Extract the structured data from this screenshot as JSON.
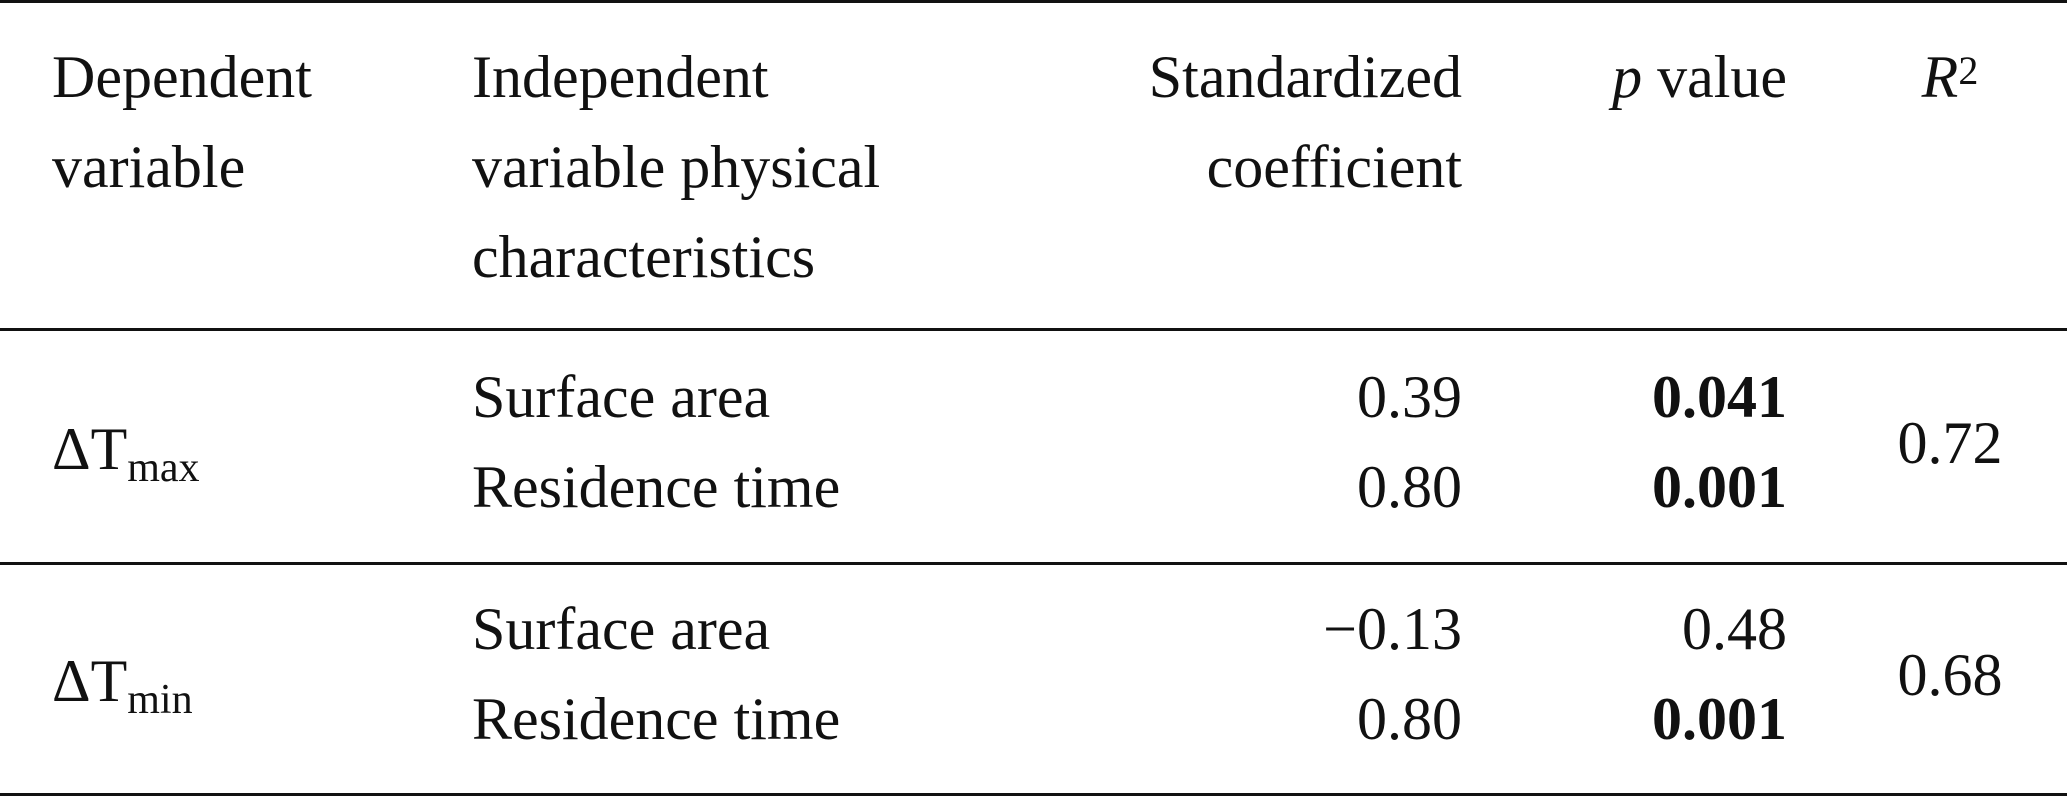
{
  "header": {
    "dependent_l1": "Dependent",
    "dependent_l2": "variable",
    "independent_l1": "Independent",
    "independent_l2": "variable physical",
    "independent_l3": "characteristics",
    "coef_l1": "Standardized",
    "coef_l2": "coefficient",
    "p_symbol": "p",
    "p_word": " value",
    "r2_symbol": "R",
    "r2_exp": "2"
  },
  "groups": [
    {
      "dep_prefix": "ΔT",
      "dep_sub": "max",
      "rows": [
        {
          "independent": "Surface area",
          "coefficient": "0.39",
          "p": "0.041",
          "p_bold": true
        },
        {
          "independent": "Residence time",
          "coefficient": "0.80",
          "p": "0.001",
          "p_bold": true
        }
      ],
      "r2": "0.72"
    },
    {
      "dep_prefix": "ΔT",
      "dep_sub": "min",
      "rows": [
        {
          "independent": "Surface area",
          "coefficient": "−0.13",
          "p": "0.48",
          "p_bold": false
        },
        {
          "independent": "Residence time",
          "coefficient": "0.80",
          "p": "0.001",
          "p_bold": true
        }
      ],
      "r2": "0.68"
    }
  ]
}
